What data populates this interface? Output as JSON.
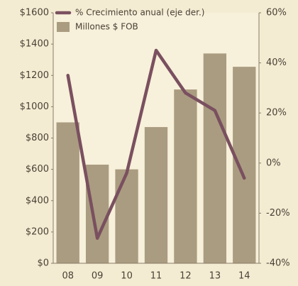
{
  "chart_data": {
    "type": "bar-line",
    "categories": [
      "08",
      "09",
      "10",
      "11",
      "12",
      "13",
      "14"
    ],
    "series": [
      {
        "name": "% Crecimiento anual (eje der.)",
        "type": "line",
        "axis": "y2",
        "color": "#7a5060",
        "values": [
          35,
          -30,
          -4,
          45,
          28,
          21,
          -6
        ]
      },
      {
        "name": "Millones $ FOB",
        "type": "bar",
        "color": "#aa9c80",
        "values": [
          900,
          630,
          600,
          870,
          1110,
          1340,
          1255
        ]
      }
    ],
    "ylim": [
      0,
      1600
    ],
    "yticks": [
      {
        "value": 0,
        "label": "$0"
      },
      {
        "value": 200,
        "label": "$200"
      },
      {
        "value": 400,
        "label": "$400"
      },
      {
        "value": 600,
        "label": "$600"
      },
      {
        "value": 800,
        "label": "$800"
      },
      {
        "value": 1000,
        "label": "$1000"
      },
      {
        "value": 1200,
        "label": "$1200"
      },
      {
        "value": 1400,
        "label": "$1400"
      },
      {
        "value": 1600,
        "label": "$1600"
      }
    ],
    "y2lim": [
      -40,
      60
    ],
    "y2ticks": [
      {
        "value": -40,
        "label": "-40%"
      },
      {
        "value": -20,
        "label": "-20%"
      },
      {
        "value": 0,
        "label": "0%"
      },
      {
        "value": 20,
        "label": "20%"
      },
      {
        "value": 40,
        "label": "40%"
      },
      {
        "value": 60,
        "label": "60%"
      }
    ],
    "legend": "top-left"
  }
}
